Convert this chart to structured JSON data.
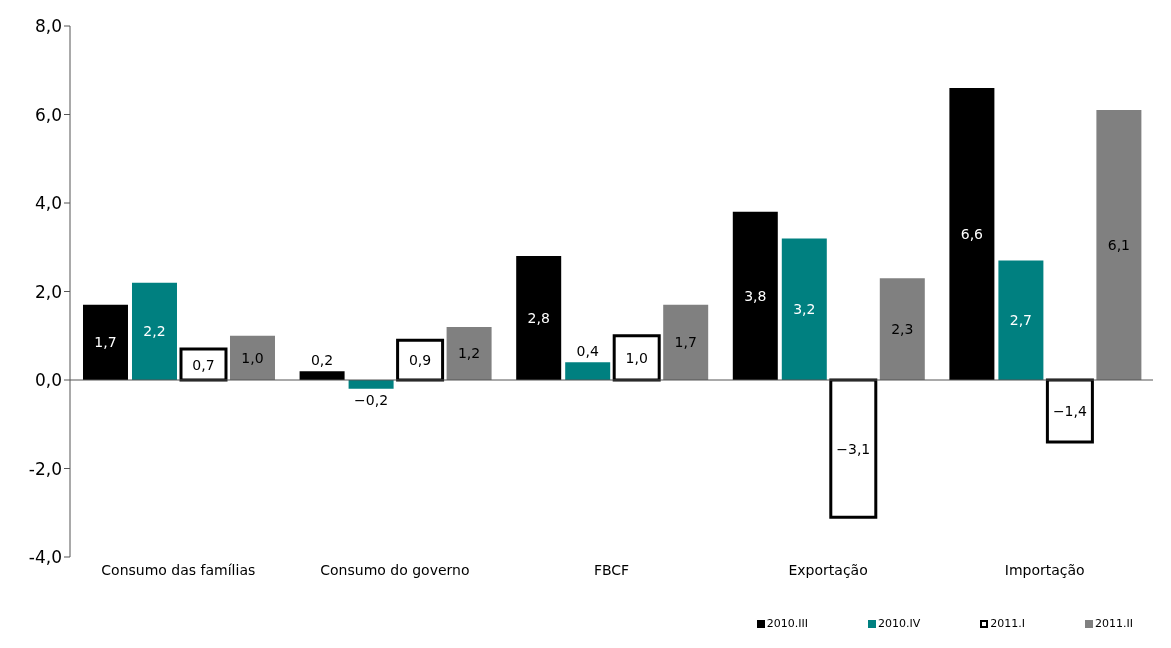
{
  "chart_data": {
    "type": "bar",
    "categories": [
      "Consumo das famílias",
      "Consumo do governo",
      "FBCF",
      "Exportação",
      "Importação"
    ],
    "series": [
      {
        "name": "2010.III",
        "color": "#000000",
        "values": [
          1.7,
          0.2,
          2.8,
          3.8,
          6.6
        ],
        "value_labels": [
          "1,7",
          "0,2",
          "2,8",
          "3,8",
          "6,6"
        ]
      },
      {
        "name": "2010.IV",
        "color": "#008080",
        "values": [
          2.2,
          -0.2,
          0.4,
          3.2,
          2.7
        ],
        "value_labels": [
          "2,2",
          "−0,2",
          "0,4",
          "3,2",
          "2,7"
        ]
      },
      {
        "name": "2011.I",
        "color": "#ffffff",
        "values": [
          0.7,
          0.9,
          1.0,
          -3.1,
          -1.4
        ],
        "value_labels": [
          "0,7",
          "0,9",
          "1,0",
          "−3,1",
          "−1,4"
        ]
      },
      {
        "name": "2011.II",
        "color": "#808080",
        "values": [
          1.0,
          1.2,
          1.7,
          2.3,
          6.1
        ],
        "value_labels": [
          "1,0",
          "1,2",
          "1,7",
          "2,3",
          "6,1"
        ]
      }
    ],
    "ylim": [
      -4,
      8
    ],
    "yticks": [
      {
        "value": -4,
        "label": "-4,0"
      },
      {
        "value": -2,
        "label": "-2,0"
      },
      {
        "value": 0,
        "label": "0,0"
      },
      {
        "value": 2,
        "label": "2,0"
      },
      {
        "value": 4,
        "label": "4,0"
      },
      {
        "value": 6,
        "label": "6,0"
      },
      {
        "value": 8,
        "label": "8,0"
      }
    ],
    "legend": "bottom right"
  }
}
